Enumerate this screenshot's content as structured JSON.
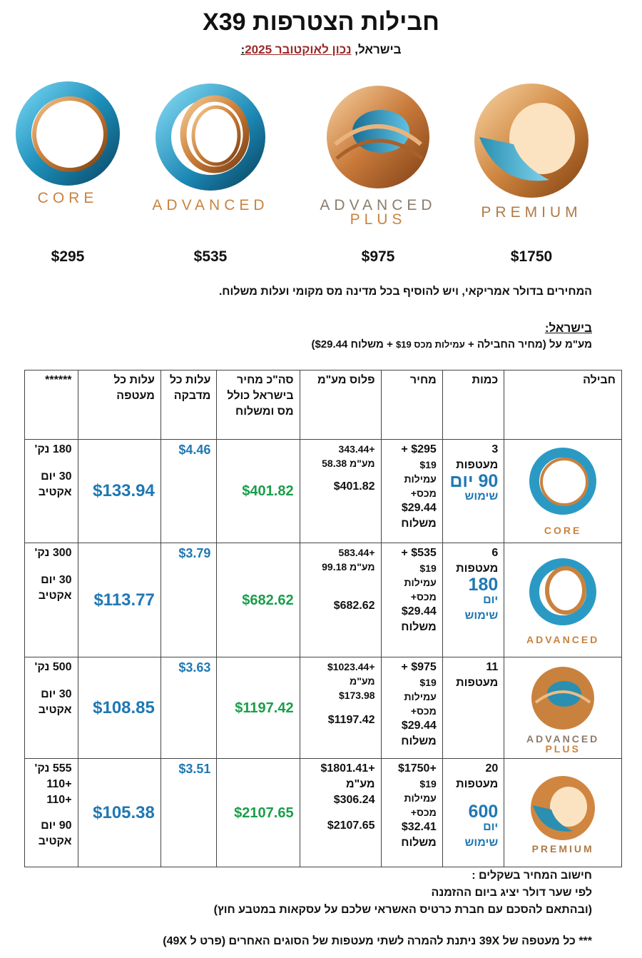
{
  "title": "חבילות הצטרפות X39",
  "subtitle": {
    "prefix": "בישראל, ",
    "date": "נכון לאוקטובר 2025",
    "suffix": ":"
  },
  "packages": [
    {
      "brand": "CORE",
      "price": "$295"
    },
    {
      "brand": "ADVANCED",
      "price": "$535"
    },
    {
      "brand": "ADVANCED",
      "brand2": "PLUS",
      "price": "$975"
    },
    {
      "brand": "PREMIUM",
      "price": "$1750"
    }
  ],
  "colors": {
    "blue": "#1f78b4",
    "green": "#1a9e4a",
    "red": "#9b2a2a",
    "copper": "#c9823e",
    "teal": "#2a8fb0"
  },
  "note": "המחירים בדולר אמריקאי, ויש להוסיף בכל מדינה מס מקומי ועלות משלוח.",
  "israel_label": "בישראל:",
  "vat_line": {
    "main": "מע\"מ על (מחיר החבילה + ",
    "small": "עמילות מכס $19",
    "end": " + משלוח $29.44)"
  },
  "table": {
    "headers": [
      "חבילה",
      "כמות",
      "מחיר",
      "פלוס מע\"מ",
      "סה\"כ מחיר בישראל כולל מס ומשלוח",
      "עלות כל מדבקה",
      "עלות כל מעטפה",
      "******"
    ],
    "rows": [
      {
        "brand": "CORE",
        "qty": "3",
        "qty_unit": "מעטפות",
        "days": "90 יום",
        "days_label": "שימוש",
        "price_lines": [
          "$295 +",
          "$19",
          "עמילות",
          "מכס+",
          "$29.44",
          "משלוח"
        ],
        "plus_top": "+343.44",
        "plus_vat": "מע\"מ 58.38",
        "plus_total": "$401.82",
        "total": "$401.82",
        "sticker": "$4.46",
        "envelope": "$133.94",
        "note_points": "180 נק'",
        "note_days": "30 יום",
        "note_active": "אקטיב"
      },
      {
        "brand": "ADVANCED",
        "qty": "6",
        "qty_unit": "מעטפות",
        "days": "180",
        "days_label": "יום שימוש",
        "price_lines": [
          "$535 +",
          "$19",
          "עמילות",
          "מכס+",
          "$29.44",
          "משלוח"
        ],
        "plus_top": "+583.44",
        "plus_vat": "מע\"מ 99.18",
        "plus_total": "$682.62",
        "total": "$682.62",
        "sticker": "$3.79",
        "envelope": "$113.77",
        "note_points": "300 נק'",
        "note_days": "30 יום",
        "note_active": "אקטיב"
      },
      {
        "brand": "ADVANCED",
        "brand2": "PLUS",
        "qty": "11",
        "qty_unit": "מעטפות",
        "days": "",
        "days_label": "",
        "price_lines": [
          "$975 +",
          "$19",
          "עמילות",
          "מכס+",
          "$29.44",
          "משלוח"
        ],
        "plus_top": "+$1023.44",
        "plus_vat": "מע\"מ",
        "plus_vat2": "$173.98",
        "plus_total": "$1197.42",
        "total": "$1197.42",
        "sticker": "$3.63",
        "envelope": "$108.85",
        "note_points": "500 נק'",
        "note_days": "30 יום",
        "note_active": "אקטיב"
      },
      {
        "brand": "PREMIUM",
        "qty": "20",
        "qty_unit": "מעטפות",
        "days": "600",
        "days_label": "יום שימוש",
        "price_lines": [
          "+$1750",
          "$19",
          "עמילות",
          "מכס+",
          "$32.41",
          "משלוח"
        ],
        "plus_top": "+$1801.41",
        "plus_vat": "מע\"מ",
        "plus_vat2": "$306.24",
        "plus_total": "$2107.65",
        "total": "$2107.65",
        "sticker": "$3.51",
        "envelope": "$105.38",
        "note_points": "555 נק'",
        "note_extra1": "+110",
        "note_extra2": "+110",
        "note_days": "90 יום",
        "note_active": "אקטיב"
      }
    ]
  },
  "footer": {
    "line1": "חישוב המחיר בשקלים :",
    "line2": "לפי שער דולר יציג ביום ההזמנה",
    "line3": "(ובהתאם להסכם עם חברת כרטיס האשראי שלכם על עסקאות במטבע חוץ)",
    "line4": "*** כל מעטפה של 39X ניתנת להמרה לשתי מעטפות של הסוגים האחרים (פרט ל 49X)"
  }
}
